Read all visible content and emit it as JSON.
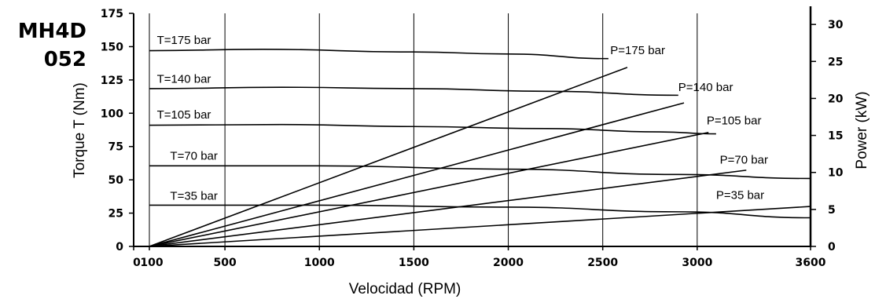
{
  "model": {
    "line1": "MH4D",
    "line2": "052"
  },
  "chart_data": {
    "type": "line",
    "xlabel": "Velocidad  (RPM)",
    "ylabel_left": "Torque T (Nm)",
    "ylabel_right": "Power  (kW)",
    "x_range": [
      0,
      3600
    ],
    "y_left_range": [
      0,
      175
    ],
    "y_right_range": [
      0,
      31.5
    ],
    "grid": true,
    "x_ticks": [
      {
        "value": 0,
        "label": "0"
      },
      {
        "value": 100,
        "label": "100"
      },
      {
        "value": 500,
        "label": "500"
      },
      {
        "value": 1000,
        "label": "1000"
      },
      {
        "value": 1500,
        "label": "1500"
      },
      {
        "value": 2000,
        "label": "2000"
      },
      {
        "value": 2500,
        "label": "2500"
      },
      {
        "value": 3000,
        "label": "3000"
      },
      {
        "value": 3600,
        "label": "3600"
      }
    ],
    "y_left_ticks": [
      0,
      25,
      50,
      75,
      100,
      125,
      150,
      175
    ],
    "y_right_ticks": [
      0,
      5,
      10,
      15,
      20,
      25,
      30
    ],
    "torque_series": [
      {
        "name": "T=175 bar",
        "points": [
          [
            100,
            147
          ],
          [
            700,
            148
          ],
          [
            1500,
            146
          ],
          [
            2000,
            144.5
          ],
          [
            2530,
            141
          ]
        ]
      },
      {
        "name": "T=140 bar",
        "points": [
          [
            100,
            118.5
          ],
          [
            800,
            119.5
          ],
          [
            1500,
            118.5
          ],
          [
            2200,
            116.5
          ],
          [
            2900,
            113.5
          ]
        ]
      },
      {
        "name": "T=105 bar",
        "points": [
          [
            100,
            91
          ],
          [
            800,
            91.5
          ],
          [
            1500,
            90
          ],
          [
            2200,
            88.5
          ],
          [
            2800,
            86
          ],
          [
            3100,
            84.5
          ]
        ]
      },
      {
        "name": "T=70 bar",
        "points": [
          [
            100,
            60.5
          ],
          [
            1000,
            60.5
          ],
          [
            2000,
            58
          ],
          [
            2900,
            54
          ],
          [
            3600,
            51
          ]
        ]
      },
      {
        "name": "T=35 bar",
        "points": [
          [
            100,
            31
          ],
          [
            1000,
            31
          ],
          [
            2000,
            29.5
          ],
          [
            2900,
            26
          ],
          [
            3600,
            21.5
          ]
        ]
      }
    ],
    "power_series": [
      {
        "name": "P=175 bar",
        "points": [
          [
            100,
            0
          ],
          [
            2630,
            24.2
          ]
        ]
      },
      {
        "name": "P=140 bar",
        "points": [
          [
            100,
            0
          ],
          [
            2930,
            19.4
          ]
        ]
      },
      {
        "name": "P=105 bar",
        "points": [
          [
            100,
            0
          ],
          [
            3060,
            15.4
          ]
        ]
      },
      {
        "name": "P=70 bar",
        "points": [
          [
            100,
            0
          ],
          [
            3260,
            10.3
          ]
        ]
      },
      {
        "name": "P=35 bar",
        "points": [
          [
            100,
            0
          ],
          [
            3600,
            5.4
          ]
        ]
      }
    ],
    "torque_label_anchor": [
      {
        "x": 140,
        "y": 152
      },
      {
        "x": 140,
        "y": 123
      },
      {
        "x": 140,
        "y": 96
      },
      {
        "x": 210,
        "y": 65
      },
      {
        "x": 210,
        "y": 35
      }
    ],
    "power_label_anchor": [
      {
        "x": 2540,
        "y": 26
      },
      {
        "x": 2900,
        "y": 21
      },
      {
        "x": 3050,
        "y": 16.5
      },
      {
        "x": 3120,
        "y": 11.2
      },
      {
        "x": 3100,
        "y": 6.4
      }
    ]
  }
}
